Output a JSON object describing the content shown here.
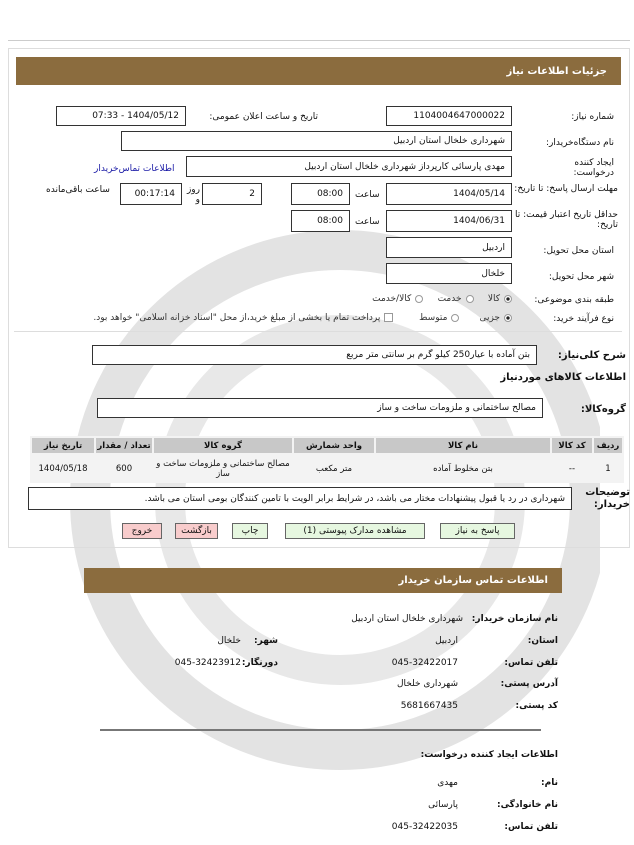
{
  "header": {
    "title": "جزئیات اطلاعات نیاز"
  },
  "form": {
    "need_number_label": "شماره نیاز:",
    "need_number": "1104004647000022",
    "announce_label": "تاریخ و ساعت اعلان عمومی:",
    "announce_value": "1404/05/12 - 07:33",
    "buyer_org_label": "نام دستگاه‌خریدار:",
    "buyer_org": "شهرداری خلخال استان اردبیل",
    "creator_label": "ایجاد کننده درخواست:",
    "creator": "مهدی پارسائی کارپرداز شهرداری خلخال استان اردبیل",
    "contact_link": "اطلاعات تماس‌خریدار",
    "deadline_label": "مهلت ارسال پاسخ: تا تاریخ:",
    "deadline_date": "1404/05/14",
    "time_label": "ساعت",
    "deadline_time": "08:00",
    "days_value": "2",
    "days_label": "روز و",
    "remaining_value": "00:17:14",
    "remaining_label": "ساعت باقی‌مانده",
    "validity_label": "حداقل تاریخ اعتبار قیمت: تا تاریخ:",
    "validity_date": "1404/06/31",
    "validity_time": "08:00",
    "province_label": "استان محل تحویل:",
    "province": "اردبیل",
    "city_label": "شهر محل تحویل:",
    "city": "خلخال",
    "category_label": "طبقه بندی موضوعی:",
    "category_options": [
      "کالا",
      "خدمت",
      "کالا/خدمت"
    ],
    "category_selected": "کالا",
    "process_label": "نوع فرآیند خرید:",
    "process_options": [
      "جزیی",
      "متوسط"
    ],
    "process_selected": "جزیی",
    "payment_note": "پرداخت تمام یا بخشی از مبلغ خرید،از محل \"اسناد خزانه اسلامی\" خواهد بود."
  },
  "summary": {
    "label": "شرح کلی‌نیاز:",
    "value": "بتن آماده با عیار250 کیلو گرم بر سانتی متر مربع"
  },
  "goods": {
    "title": "اطلاعات کالاهای موردنیاز",
    "group_label": "گروه‌کالا:",
    "group_value": "مصالح ساختمانی و ملزومات ساخت و ساز",
    "columns": [
      "ردیف",
      "کد کالا",
      "نام کالا",
      "واحد شمارش",
      "گروه کالا",
      "تعداد / مقدار",
      "تاریخ نیاز"
    ],
    "rows": [
      [
        "1",
        "--",
        "بتن مخلوط آماده",
        "متر مکعب",
        "مصالح ساختمانی و ملزومات ساخت و ساز",
        "600",
        "1404/05/18"
      ]
    ]
  },
  "notes": {
    "label": "توضیحات خریدار:",
    "value": "شهرداری در رد یا قبول پیشنهادات مختار می باشد، در شرایط برابر الویت با تامین کنندگان بومی استان می باشد."
  },
  "buttons": {
    "reply": "پاسخ به نیاز",
    "attachments": "مشاهده مدارک پیوستی (1)",
    "print": "چاپ",
    "back": "بازگشت",
    "exit": "خروج"
  },
  "contact": {
    "title": "اطلاعات تماس سازمان خریدار",
    "org_label": "نام سازمان خریدار:",
    "org": "شهرداری خلخال استان اردبیل",
    "province_label": "استان:",
    "province": "اردبیل",
    "city_label": "شهر:",
    "city": "خلخال",
    "phone_label": "تلفن تماس:",
    "phone": "045-32422017",
    "fax_label": "دورنگار:",
    "fax": "045-32423912",
    "address_label": "آدرس پستی:",
    "address": "شهرداری خلخال",
    "postal_label": "کد پستی:",
    "postal": "5681667435",
    "creator_title": "اطلاعات ایجاد کننده درخواست:",
    "name_label": "نام:",
    "name": "مهدی",
    "family_label": "نام خانوادگی:",
    "family": "پارسائی",
    "creator_phone_label": "تلفن تماس:",
    "creator_phone": "045-32422035"
  },
  "colors": {
    "header": "#8b6c3e",
    "green_button": "#e6f7e0",
    "red_button": "#f8cccc"
  }
}
